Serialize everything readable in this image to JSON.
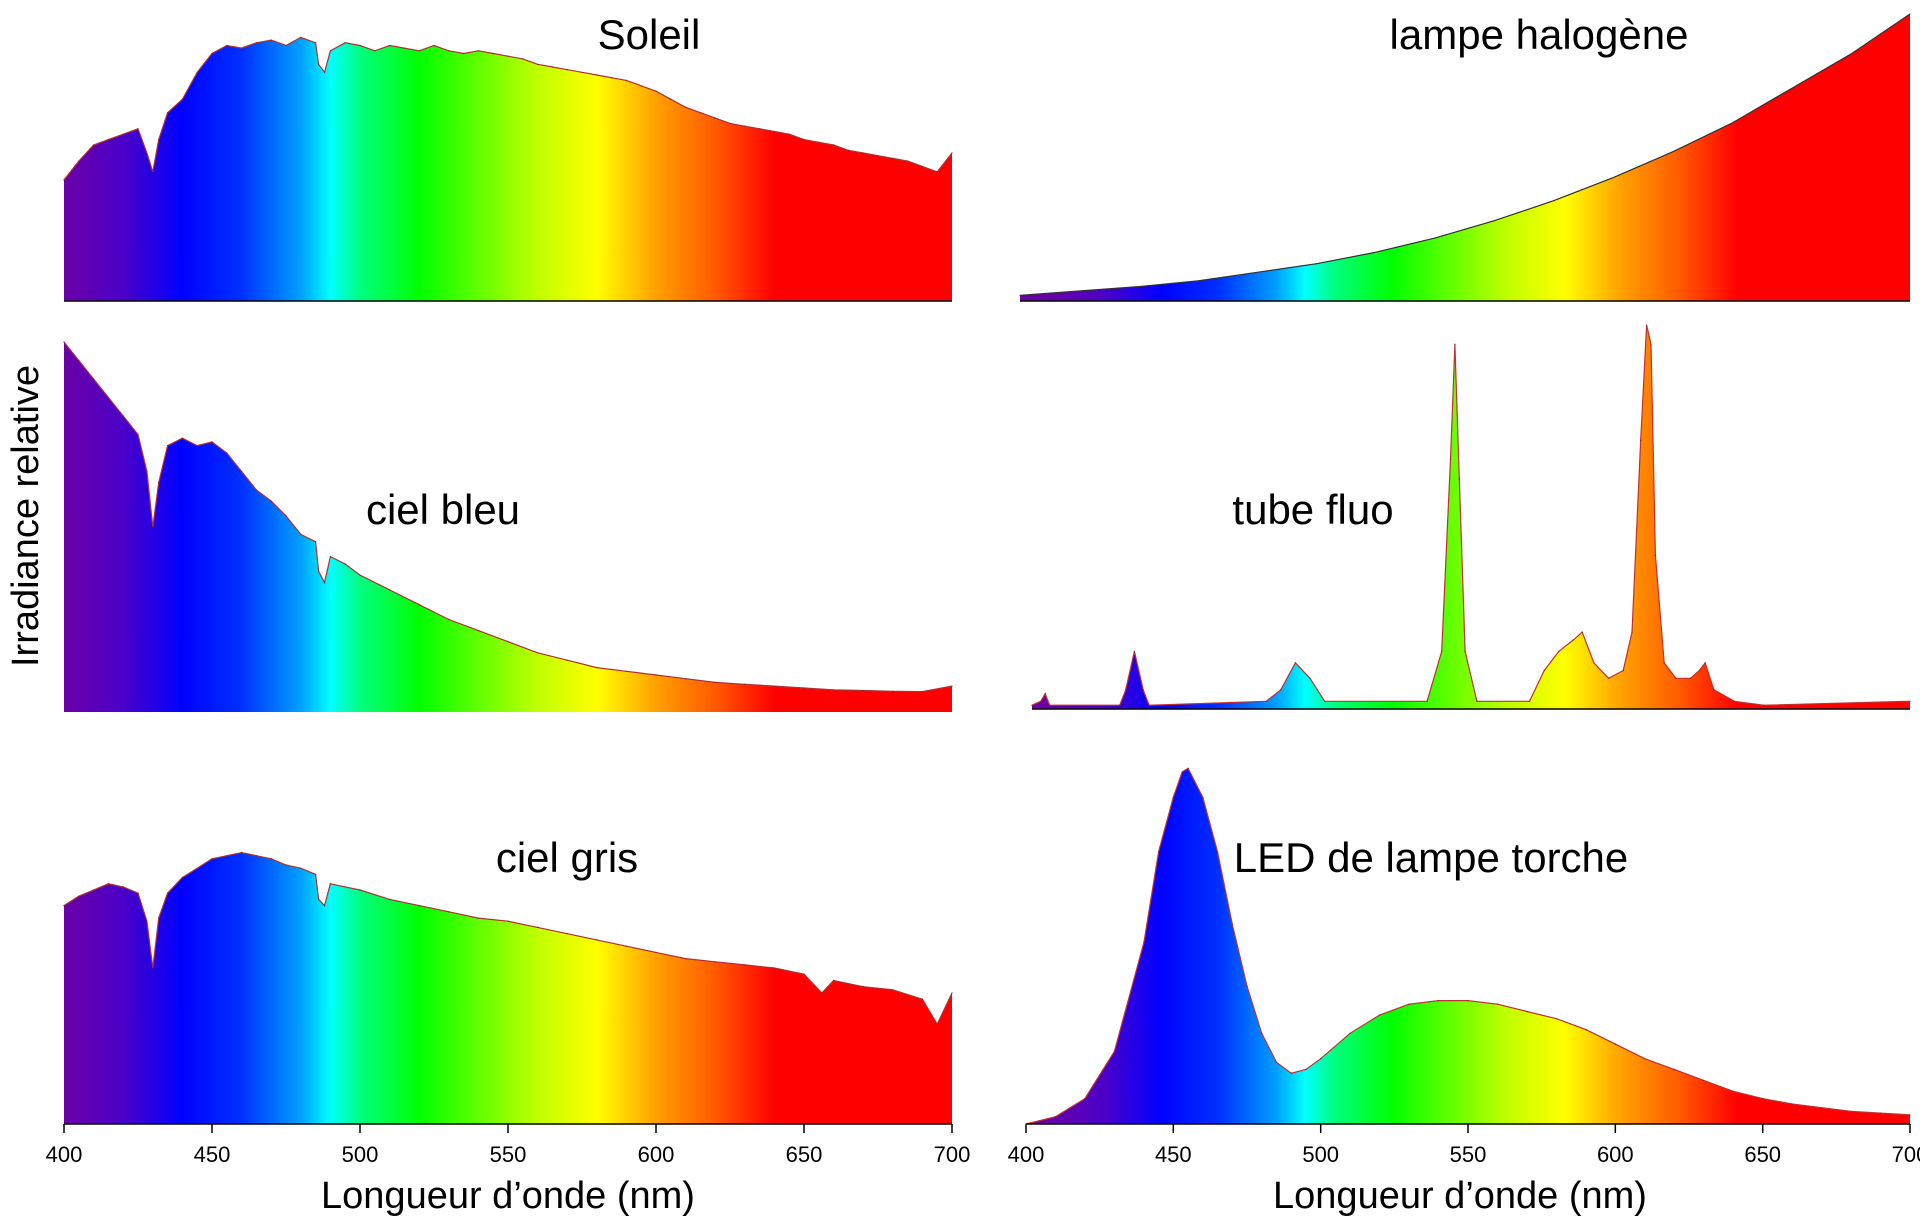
{
  "figure": {
    "ylabel": "Irradiance relative",
    "xlabel": "Longueur d’onde (nm)"
  },
  "spectrum_colors": {
    "stops_nm": [
      400,
      420,
      440,
      460,
      480,
      490,
      500,
      520,
      540,
      560,
      580,
      590,
      600,
      620,
      640,
      700
    ],
    "stops_hex": [
      "#6a00a8",
      "#4b00c8",
      "#0000ff",
      "#0030ff",
      "#00a0ff",
      "#00ffff",
      "#00ff80",
      "#00ff00",
      "#60ff00",
      "#c0ff00",
      "#ffff00",
      "#ffd000",
      "#ffa000",
      "#ff5a00",
      "#ff0000",
      "#ff0000"
    ]
  },
  "chart_data": [
    {
      "id": "soleil",
      "type": "area",
      "title": "Soleil",
      "xlim": [
        400,
        700
      ],
      "ylim": [
        0,
        1
      ],
      "x_axis_ticks": false,
      "x": [
        400,
        405,
        410,
        415,
        420,
        425,
        428,
        430,
        432,
        435,
        440,
        445,
        450,
        455,
        460,
        465,
        470,
        475,
        480,
        485,
        486,
        488,
        490,
        495,
        500,
        505,
        510,
        515,
        520,
        525,
        530,
        535,
        540,
        545,
        550,
        555,
        560,
        565,
        570,
        575,
        580,
        585,
        590,
        595,
        600,
        605,
        610,
        615,
        620,
        625,
        630,
        635,
        640,
        645,
        650,
        655,
        660,
        665,
        670,
        675,
        680,
        685,
        690,
        695,
        700
      ],
      "values": [
        0.45,
        0.52,
        0.58,
        0.6,
        0.62,
        0.64,
        0.55,
        0.48,
        0.6,
        0.7,
        0.75,
        0.85,
        0.92,
        0.95,
        0.94,
        0.96,
        0.97,
        0.95,
        0.98,
        0.96,
        0.88,
        0.85,
        0.93,
        0.96,
        0.95,
        0.93,
        0.95,
        0.94,
        0.93,
        0.95,
        0.93,
        0.92,
        0.93,
        0.92,
        0.91,
        0.9,
        0.88,
        0.87,
        0.86,
        0.85,
        0.84,
        0.83,
        0.82,
        0.8,
        0.78,
        0.75,
        0.72,
        0.7,
        0.68,
        0.66,
        0.65,
        0.64,
        0.63,
        0.62,
        0.6,
        0.59,
        0.58,
        0.56,
        0.55,
        0.54,
        0.53,
        0.52,
        0.5,
        0.48,
        0.55
      ]
    },
    {
      "id": "lampe_halogene",
      "type": "area",
      "title": "lampe halogène",
      "xlim": [
        400,
        700
      ],
      "ylim": [
        0,
        1
      ],
      "x_axis_ticks": false,
      "x": [
        400,
        420,
        440,
        460,
        480,
        500,
        520,
        540,
        560,
        580,
        600,
        620,
        640,
        660,
        680,
        700
      ],
      "values": [
        0.02,
        0.035,
        0.05,
        0.07,
        0.1,
        0.13,
        0.17,
        0.22,
        0.28,
        0.35,
        0.43,
        0.52,
        0.62,
        0.74,
        0.86,
        1.0
      ]
    },
    {
      "id": "ciel_bleu",
      "type": "area",
      "title": "ciel bleu",
      "xlim": [
        400,
        700
      ],
      "ylim": [
        0,
        1
      ],
      "x_axis_ticks": false,
      "x": [
        400,
        405,
        410,
        415,
        420,
        425,
        428,
        430,
        432,
        435,
        440,
        445,
        450,
        455,
        460,
        465,
        470,
        475,
        480,
        485,
        486,
        488,
        490,
        495,
        500,
        510,
        520,
        530,
        540,
        550,
        560,
        570,
        580,
        590,
        600,
        610,
        620,
        630,
        640,
        650,
        660,
        670,
        680,
        690,
        700
      ],
      "values": [
        1.0,
        0.95,
        0.9,
        0.85,
        0.8,
        0.75,
        0.65,
        0.5,
        0.62,
        0.72,
        0.74,
        0.72,
        0.73,
        0.7,
        0.65,
        0.6,
        0.57,
        0.53,
        0.48,
        0.46,
        0.38,
        0.35,
        0.42,
        0.4,
        0.37,
        0.33,
        0.29,
        0.25,
        0.22,
        0.19,
        0.16,
        0.14,
        0.12,
        0.11,
        0.1,
        0.09,
        0.08,
        0.075,
        0.07,
        0.065,
        0.06,
        0.058,
        0.056,
        0.055,
        0.07
      ]
    },
    {
      "id": "tube_fluo",
      "type": "area",
      "title": "tube fluo",
      "xlim": [
        400,
        700
      ],
      "ylim": [
        0,
        1
      ],
      "x_axis_ticks": false,
      "x": [
        400,
        403,
        404.5,
        406,
        430,
        432,
        435,
        438,
        440,
        480,
        485,
        490,
        495,
        500,
        535,
        540,
        543,
        544.5,
        546,
        548,
        552,
        570,
        575,
        580,
        585,
        588,
        592,
        597,
        602,
        605,
        608,
        610,
        611.5,
        613,
        616,
        620,
        625,
        628,
        630,
        633,
        640,
        650,
        700
      ],
      "values": [
        0.01,
        0.02,
        0.04,
        0.01,
        0.01,
        0.05,
        0.15,
        0.05,
        0.01,
        0.02,
        0.05,
        0.12,
        0.08,
        0.02,
        0.02,
        0.15,
        0.65,
        0.95,
        0.6,
        0.15,
        0.02,
        0.02,
        0.1,
        0.15,
        0.18,
        0.2,
        0.12,
        0.08,
        0.1,
        0.2,
        0.7,
        1.0,
        0.95,
        0.4,
        0.12,
        0.08,
        0.08,
        0.1,
        0.12,
        0.05,
        0.02,
        0.01,
        0.02
      ]
    },
    {
      "id": "ciel_gris",
      "type": "area",
      "title": "ciel gris",
      "xlim": [
        400,
        700
      ],
      "ylim": [
        0,
        1
      ],
      "x_axis_ticks": true,
      "xticks": [
        400,
        450,
        500,
        550,
        600,
        650,
        700
      ],
      "xlabel": "Longueur d’onde (nm)",
      "x": [
        400,
        405,
        410,
        415,
        420,
        425,
        428,
        430,
        432,
        435,
        440,
        445,
        450,
        455,
        460,
        465,
        470,
        475,
        480,
        485,
        486,
        488,
        490,
        495,
        500,
        510,
        520,
        530,
        540,
        550,
        560,
        570,
        580,
        590,
        600,
        610,
        620,
        630,
        640,
        650,
        656,
        660,
        670,
        680,
        690,
        695,
        700
      ],
      "values": [
        0.7,
        0.73,
        0.75,
        0.77,
        0.76,
        0.74,
        0.65,
        0.5,
        0.66,
        0.74,
        0.79,
        0.82,
        0.85,
        0.86,
        0.87,
        0.86,
        0.85,
        0.83,
        0.82,
        0.8,
        0.72,
        0.7,
        0.77,
        0.76,
        0.75,
        0.72,
        0.7,
        0.68,
        0.66,
        0.65,
        0.63,
        0.61,
        0.59,
        0.57,
        0.55,
        0.53,
        0.52,
        0.51,
        0.5,
        0.48,
        0.42,
        0.46,
        0.44,
        0.43,
        0.4,
        0.32,
        0.42
      ]
    },
    {
      "id": "led",
      "type": "area",
      "title": "LED de lampe torche",
      "xlim": [
        400,
        700
      ],
      "ylim": [
        0,
        1
      ],
      "x_axis_ticks": true,
      "xticks": [
        400,
        450,
        500,
        550,
        600,
        650,
        700
      ],
      "xlabel": "Longueur d’onde (nm)",
      "x": [
        400,
        410,
        420,
        430,
        440,
        445,
        450,
        453,
        455,
        460,
        465,
        470,
        475,
        480,
        485,
        490,
        495,
        500,
        510,
        520,
        530,
        540,
        550,
        560,
        570,
        580,
        590,
        600,
        610,
        620,
        630,
        640,
        650,
        660,
        670,
        680,
        690,
        700
      ],
      "values": [
        0.0,
        0.02,
        0.07,
        0.2,
        0.5,
        0.75,
        0.9,
        0.97,
        0.98,
        0.9,
        0.75,
        0.55,
        0.38,
        0.25,
        0.17,
        0.14,
        0.15,
        0.18,
        0.25,
        0.3,
        0.33,
        0.34,
        0.34,
        0.33,
        0.31,
        0.29,
        0.26,
        0.22,
        0.18,
        0.15,
        0.12,
        0.09,
        0.07,
        0.055,
        0.045,
        0.035,
        0.03,
        0.025
      ]
    }
  ]
}
